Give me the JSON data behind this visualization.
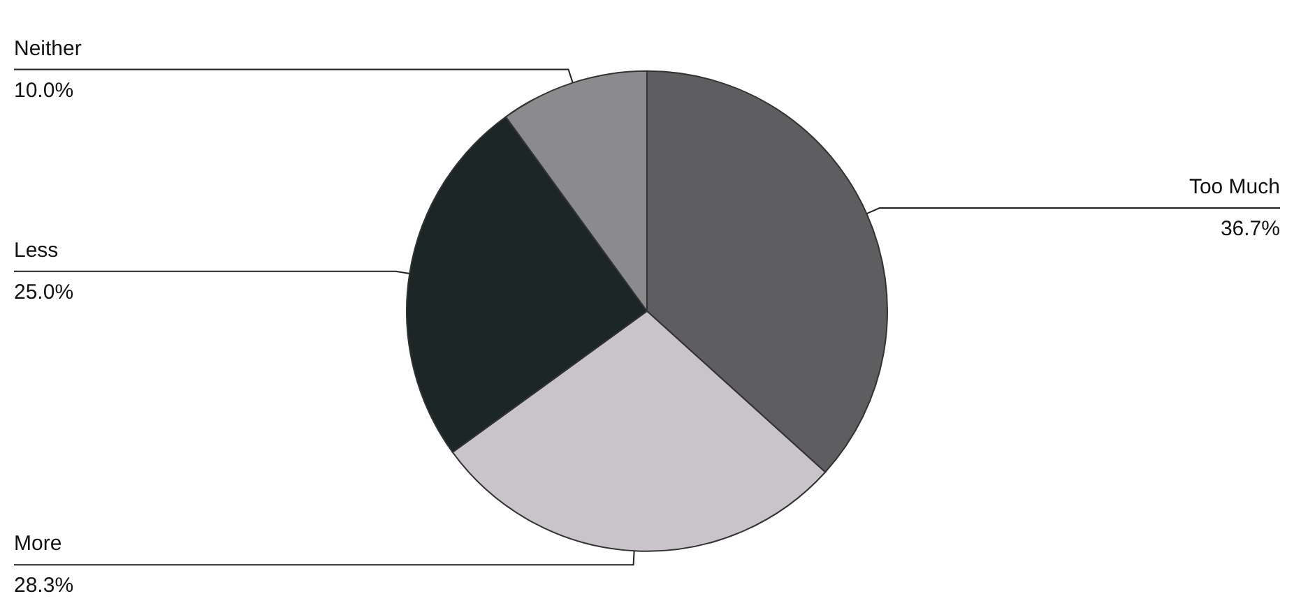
{
  "chart_data": {
    "type": "pie",
    "categories": [
      "Too Much",
      "More",
      "Less",
      "Neither"
    ],
    "values": [
      36.7,
      28.3,
      25.0,
      10.0
    ],
    "value_labels": [
      "36.7%",
      "28.3%",
      "25.0%",
      "10.0%"
    ],
    "colors": [
      "#5e5e60",
      "#c9c4c9",
      "#1c2626",
      "#8b8a8c"
    ],
    "legend": false
  }
}
